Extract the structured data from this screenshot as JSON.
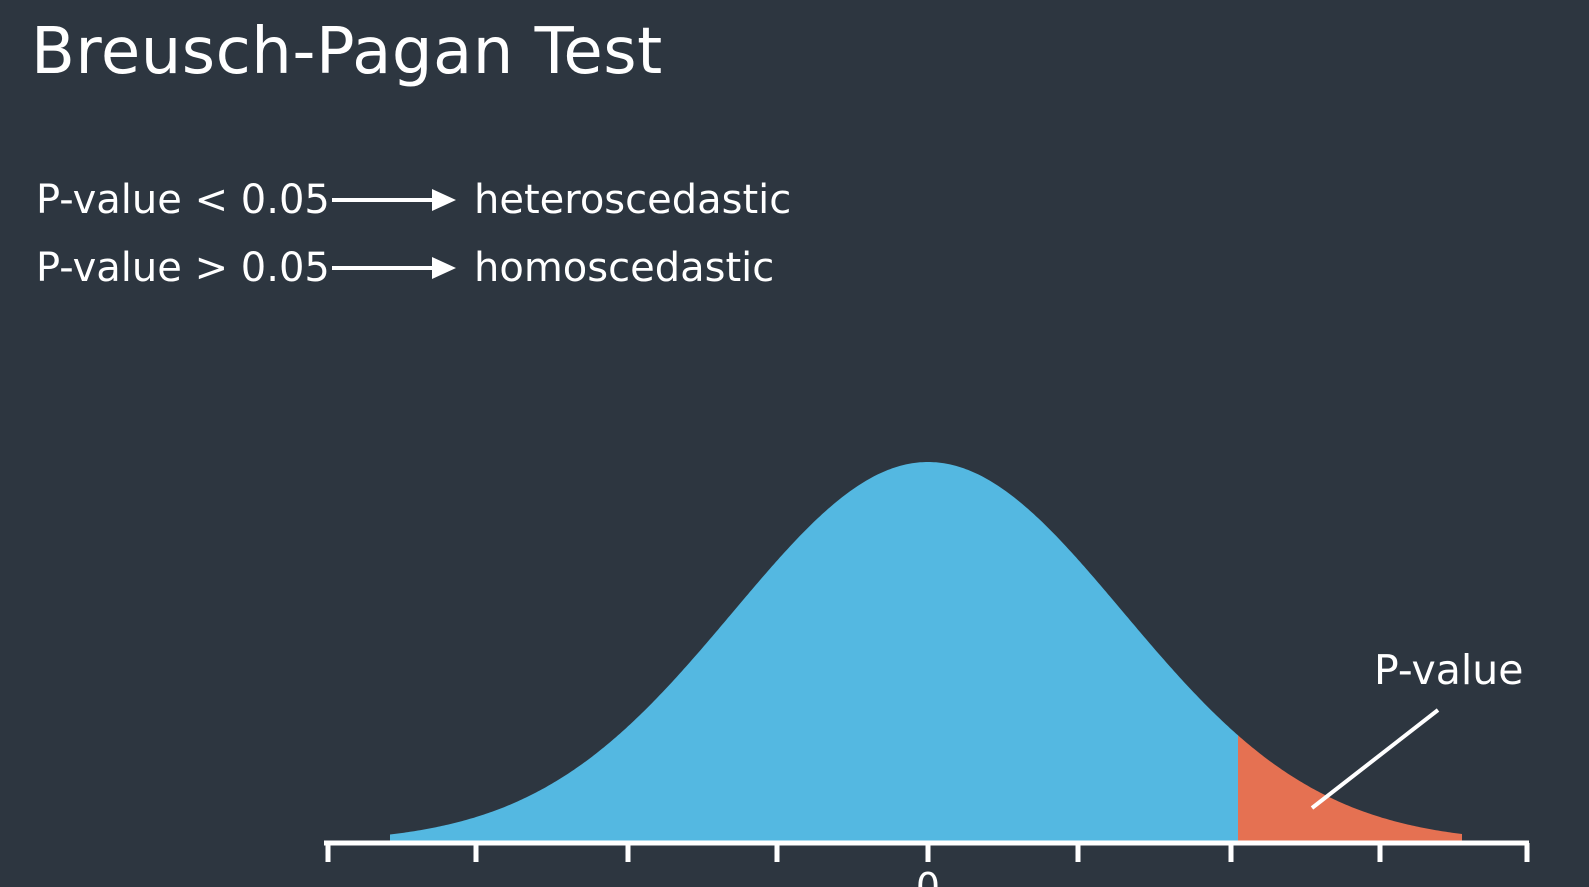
{
  "slide": {
    "title": "Breusch-Pagan Test",
    "background_color": "#2d3640",
    "text_color": "#ffffff"
  },
  "rules": [
    {
      "condition": "P-value < 0.05",
      "arrow_icon": "right-arrow-icon",
      "result": "heteroscedastic"
    },
    {
      "condition": "P-value > 0.05",
      "arrow_icon": "right-arrow-icon",
      "result": "homoscedastic"
    }
  ],
  "distribution": {
    "shape": "normal bell curve",
    "body_color": "#54b8e1",
    "tail_color": "#e57152",
    "axis_color": "#ffffff",
    "tick_label": "0",
    "tail_label": "P-value"
  }
}
